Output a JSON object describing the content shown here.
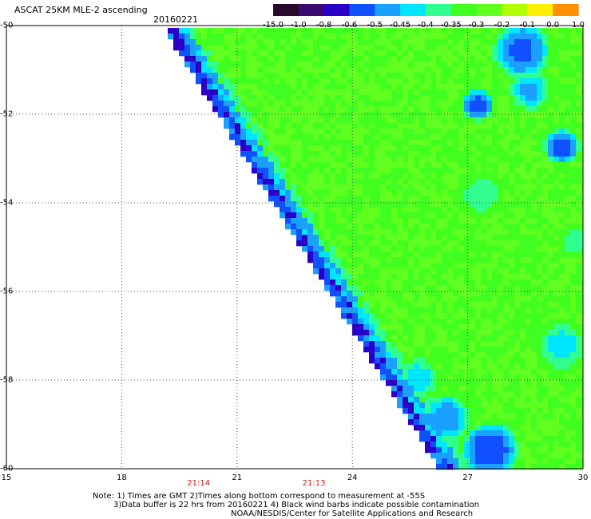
{
  "header": {
    "title": "ASCAT 25KM MLE-2 ascending",
    "date": "20160221"
  },
  "colorbar": {
    "labels": [
      "-15.0",
      "-1.0",
      "-0.8",
      "-0.6",
      "-0.5",
      "-0.45",
      "-0.4",
      "-0.35",
      "-0.3",
      "-0.2",
      "-0.1",
      "0.0",
      "1.0"
    ],
    "colors": [
      "#2a0a2a",
      "#3a0a70",
      "#2a00c8",
      "#1050ff",
      "#1aa0ff",
      "#00e6ff",
      "#30ff90",
      "#40ff20",
      "#60ff20",
      "#b0ff00",
      "#ffee00",
      "#ff9000",
      "#ff2000"
    ]
  },
  "map": {
    "lat_labels": [
      "-50",
      "-52",
      "-54",
      "-56",
      "-58",
      "-60"
    ],
    "lat_values": [
      -50,
      -52,
      -54,
      -56,
      -58,
      -60
    ],
    "lon_labels": [
      "15",
      "18",
      "21",
      "24",
      "27",
      "30"
    ],
    "lon_values": [
      15,
      18,
      21,
      24,
      27,
      30
    ],
    "time_labels": [
      {
        "text": "21:14",
        "lon": 20.0
      },
      {
        "text": "21:13",
        "lon": 23.0
      }
    ]
  },
  "notes": {
    "line1": "Note: 1) Times are GMT 2)Times along bottom correspond to measurement at -55S",
    "line2": "3)Data buffer is 22 hrs from 20160221 4) Black wind barbs indicate possible contamination",
    "line3": "NOAA/NESDIS/Center for Satellite Applications and Research"
  }
}
